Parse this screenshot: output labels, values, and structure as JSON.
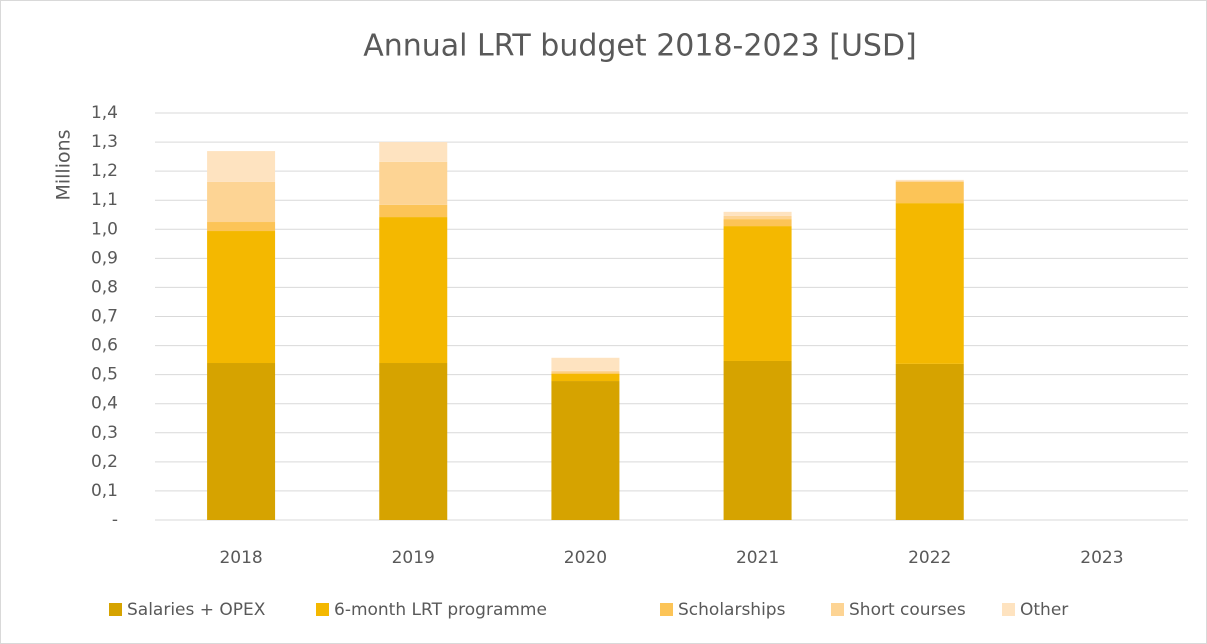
{
  "chart_data": {
    "type": "stacked_bar",
    "title": "Annual LRT budget 2018-2023 [USD]",
    "y_label": "Millions",
    "categories": [
      "2018",
      "2019",
      "2020",
      "2021",
      "2022",
      "2023"
    ],
    "series": [
      {
        "name": "Salaries + OPEX",
        "color": "#d6a300",
        "values": [
          0.54,
          0.54,
          0.478,
          0.547,
          0.537,
          0
        ]
      },
      {
        "name": "6-month LRT programme",
        "color": "#f4b800",
        "values": [
          0.454,
          0.502,
          0.025,
          0.464,
          0.553,
          0
        ]
      },
      {
        "name": "Scholarships",
        "color": "#fcc457",
        "values": [
          0.031,
          0.042,
          0.005,
          0.024,
          0.073,
          0
        ]
      },
      {
        "name": "Short courses",
        "color": "#fdd494",
        "values": [
          0.138,
          0.148,
          0.005,
          0.011,
          0.003,
          0
        ]
      },
      {
        "name": "Other",
        "color": "#fee3c0",
        "values": [
          0.106,
          0.068,
          0.045,
          0.014,
          0.004,
          0
        ]
      }
    ],
    "ylim": [
      0,
      1.4
    ],
    "yticks": [
      {
        "value": 0,
        "label": "-"
      },
      {
        "value": 0.1,
        "label": "0,1"
      },
      {
        "value": 0.2,
        "label": "0,2"
      },
      {
        "value": 0.3,
        "label": "0,3"
      },
      {
        "value": 0.4,
        "label": "0,4"
      },
      {
        "value": 0.5,
        "label": "0,5"
      },
      {
        "value": 0.6,
        "label": "0,6"
      },
      {
        "value": 0.7,
        "label": "0,7"
      },
      {
        "value": 0.8,
        "label": "0,8"
      },
      {
        "value": 0.9,
        "label": "0,9"
      },
      {
        "value": 1.0,
        "label": "1,0"
      },
      {
        "value": 1.1,
        "label": "1,1"
      },
      {
        "value": 1.2,
        "label": "1,2"
      },
      {
        "value": 1.3,
        "label": "1,3"
      },
      {
        "value": 1.4,
        "label": "1,4"
      }
    ],
    "grid": true,
    "legend": "bottom"
  }
}
